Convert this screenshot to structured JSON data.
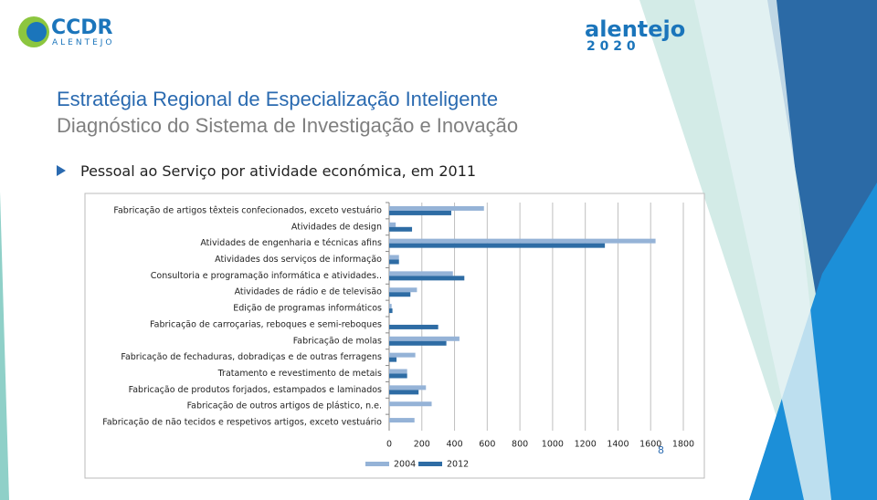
{
  "slide": {
    "logo_left": "CCDR",
    "logo_left_sub": "ALENTEJO",
    "logo_right": "alentejo",
    "logo_right_sub": "2 0 2 0",
    "title": "Estratégia Regional de Especialização Inteligente",
    "subtitle": "Diagnóstico do Sistema de Investigação e Inovação",
    "bullet": "Pessoal ao Serviço por atividade económica, em 2011",
    "page_number": "8"
  },
  "chart_data": {
    "type": "hbar",
    "categories": [
      "Fabricação de artigos têxteis confecionados, exceto vestuário",
      "Atividades de design",
      "Atividades de engenharia e técnicas afins",
      "Atividades dos serviços de informação",
      "Consultoria e programação informática e atividades..",
      "Atividades de rádio e de televisão",
      "Edição de programas informáticos",
      "Fabricação de carroçarias, reboques e semi-reboques",
      "Fabricação de molas",
      "Fabricação de fechaduras, dobradiças e de outras ferragens",
      "Tratamento e revestimento de metais",
      "Fabricação de produtos forjados, estampados e laminados",
      "Fabricação de outros artigos de plástico, n.e.",
      "Fabricação de não tecidos e respetivos artigos, exceto vestuário"
    ],
    "series": [
      {
        "name": "2004",
        "color": "#95b3d7",
        "values": [
          580,
          40,
          1630,
          60,
          390,
          170,
          15,
          0,
          430,
          160,
          110,
          225,
          260,
          155
        ]
      },
      {
        "name": "2012",
        "color": "#2e6ca4",
        "values": [
          380,
          140,
          1320,
          60,
          460,
          130,
          20,
          300,
          350,
          45,
          110,
          180,
          0,
          0
        ]
      }
    ],
    "xlim": [
      0,
      1800
    ],
    "xticks": [
      0,
      200,
      400,
      600,
      800,
      1000,
      1200,
      1400,
      1600,
      1800
    ],
    "grid": true,
    "legend": "bottom"
  }
}
